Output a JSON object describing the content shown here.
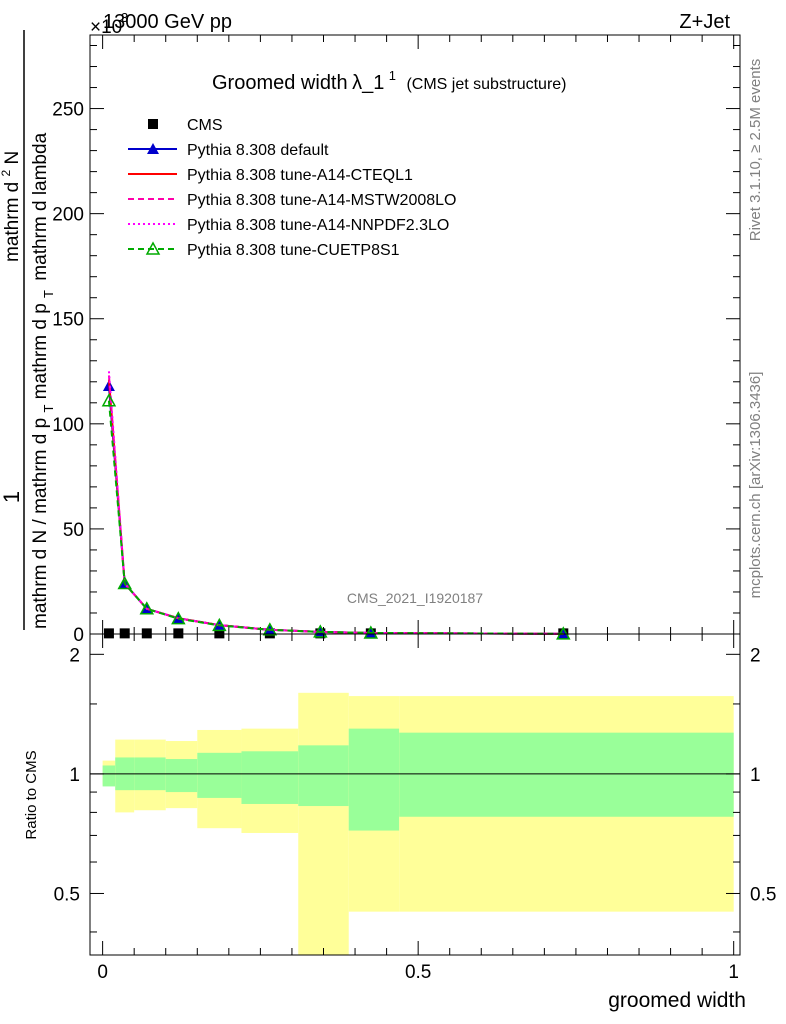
{
  "header": {
    "energy": "13000 GeV pp",
    "process": "Z+Jet",
    "exponent": "×10",
    "exponent_power": "3"
  },
  "side": {
    "rivet": "Rivet 3.1.10, ≥ 2.5M events",
    "source": "mcplots.cern.ch [arXiv:1306.3436]"
  },
  "watermark": "CMS_2021_I1920187",
  "chart_data": [
    {
      "type": "line",
      "title_main": "Groomed width",
      "title_lambda": "λ_1",
      "title_sup": "1",
      "title_note": "(CMS jet substructure)",
      "ylabel_1": "1",
      "ylabel_den": "mathrm d N / mathrm d p",
      "ylabel_den_sub": "T",
      "ylabel_num_1": "mathrm d",
      "ylabel_num_sup": "2",
      "ylabel_num_2": "N",
      "ylabel_num_3": "mathrm d p",
      "ylabel_num_sub": "T",
      "ylabel_num_4": "mathrm d lambda",
      "xlim": [
        -0.02,
        1.01
      ],
      "ylim": [
        0,
        285
      ],
      "yticks": [
        0,
        50,
        100,
        150,
        200,
        250
      ],
      "ytick_labels": [
        "0",
        "50",
        "100",
        "150",
        "200",
        "250"
      ],
      "legend_position": "top-left",
      "series": [
        {
          "name": "CMS",
          "color": "#000000",
          "marker": "square",
          "line": "none",
          "x": [
            0.01,
            0.035,
            0.07,
            0.12,
            0.185,
            0.265,
            0.345,
            0.425,
            0.73
          ],
          "y": [
            0.3,
            0.3,
            0.3,
            0.3,
            0.3,
            0.3,
            0.3,
            0.3,
            0.3
          ]
        },
        {
          "name": "Pythia 8.308 default",
          "color": "#0000cc",
          "marker": "triangle",
          "line": "solid",
          "x": [
            0.01,
            0.035,
            0.07,
            0.12,
            0.185,
            0.265,
            0.345,
            0.425,
            0.73
          ],
          "y": [
            118,
            24,
            12,
            7.5,
            4.2,
            2.0,
            1.0,
            0.5,
            0.08
          ]
        },
        {
          "name": "Pythia 8.308 tune-A14-CTEQL1",
          "color": "#ff0000",
          "marker": "none",
          "line": "solid",
          "x": [
            0.01,
            0.035,
            0.07,
            0.12,
            0.185,
            0.265,
            0.345,
            0.425,
            0.73
          ],
          "y": [
            121,
            24,
            12,
            7.5,
            4.2,
            2.0,
            1.0,
            0.5,
            0.08
          ]
        },
        {
          "name": "Pythia 8.308 tune-A14-MSTW2008LO",
          "color": "#ff00aa",
          "marker": "none",
          "line": "dashed",
          "x": [
            0.01,
            0.035,
            0.07,
            0.12,
            0.185,
            0.265,
            0.345,
            0.425,
            0.73
          ],
          "y": [
            123,
            24,
            12,
            7.5,
            4.2,
            2.0,
            1.0,
            0.5,
            0.08
          ]
        },
        {
          "name": "Pythia 8.308 tune-A14-NNPDF2.3LO",
          "color": "#ff00ff",
          "marker": "none",
          "line": "dotted",
          "x": [
            0.01,
            0.035,
            0.07,
            0.12,
            0.185,
            0.265,
            0.345,
            0.425,
            0.73
          ],
          "y": [
            125,
            24,
            12,
            7.5,
            4.2,
            2.0,
            1.0,
            0.5,
            0.08
          ]
        },
        {
          "name": "Pythia 8.308 tune-CUETP8S1",
          "color": "#00aa00",
          "marker": "open-triangle",
          "line": "dashed",
          "x": [
            0.01,
            0.035,
            0.07,
            0.12,
            0.185,
            0.265,
            0.345,
            0.425,
            0.73
          ],
          "y": [
            111,
            24,
            12,
            7.3,
            4.1,
            2.0,
            1.0,
            0.5,
            0.08
          ]
        }
      ]
    },
    {
      "type": "area",
      "ylabel": "Ratio to CMS",
      "xlabel": "groomed width",
      "xlim": [
        -0.02,
        1.01
      ],
      "ylim": [
        0.35,
        2.25
      ],
      "yticks": [
        0.5,
        1,
        2
      ],
      "ytick_labels": [
        "0.5",
        "1",
        "2"
      ],
      "xticks": [
        0,
        0.5,
        1
      ],
      "xtick_labels": [
        "0",
        "0.5",
        "1"
      ],
      "bands": {
        "edges": [
          0.0,
          0.02,
          0.05,
          0.1,
          0.15,
          0.22,
          0.31,
          0.39,
          0.47,
          1.0
        ],
        "inner_lo": [
          0.93,
          0.91,
          0.91,
          0.9,
          0.87,
          0.84,
          0.83,
          0.72,
          0.78
        ],
        "inner_hi": [
          1.05,
          1.1,
          1.1,
          1.09,
          1.13,
          1.14,
          1.18,
          1.3,
          1.27
        ],
        "outer_lo": [
          0.94,
          0.8,
          0.81,
          0.82,
          0.73,
          0.71,
          0.2,
          0.45,
          0.45
        ],
        "outer_hi": [
          1.08,
          1.22,
          1.22,
          1.21,
          1.29,
          1.3,
          1.6,
          1.57,
          1.57
        ],
        "inner_color": "#99ff99",
        "outer_color": "#ffff99"
      },
      "reference_line": 1
    }
  ]
}
